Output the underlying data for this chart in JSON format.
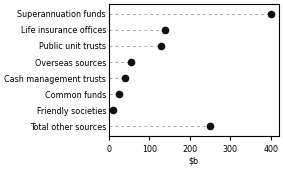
{
  "categories": [
    "Superannuation funds",
    "Life insurance offices",
    "Public unit trusts",
    "Overseas sources",
    "Cash management trusts",
    "Common funds",
    "Friendly societies",
    "Total other sources"
  ],
  "values": [
    400,
    140,
    130,
    55,
    40,
    25,
    10,
    250
  ],
  "xlim": [
    0,
    420
  ],
  "xticks": [
    0,
    100,
    200,
    300,
    400
  ],
  "marker_color": "#111111",
  "marker_size": 4.5,
  "line_color": "#aaaaaa",
  "background_color": "#ffffff",
  "label_fontsize": 5.8,
  "tick_fontsize": 5.8
}
